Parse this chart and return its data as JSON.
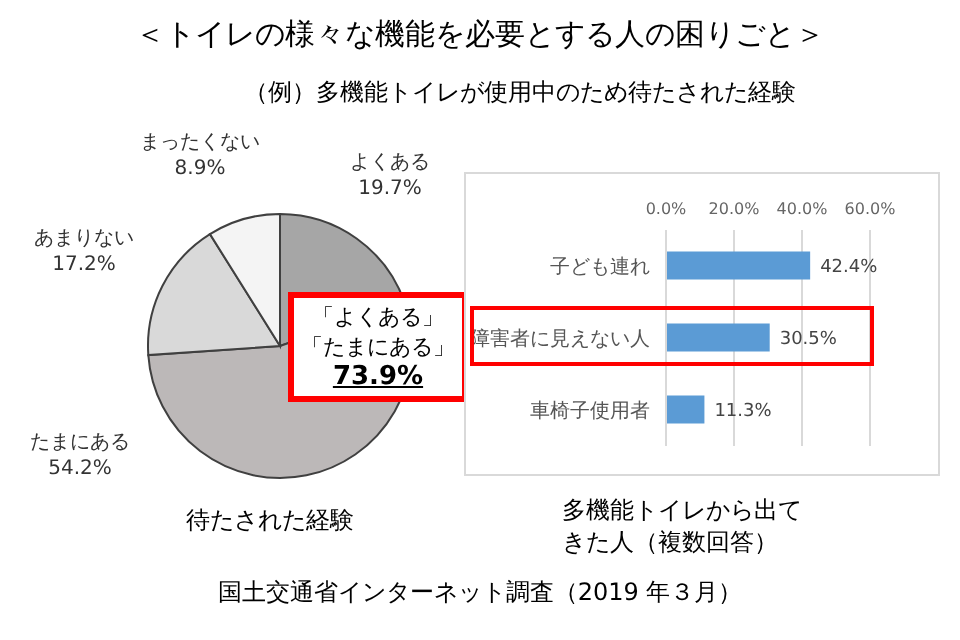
{
  "chart_data": [
    {
      "type": "pie",
      "title": "＜トイレの様々な機能を必要とする人の困りごと＞",
      "subtitle": "（例）多機能トイレが使用中のため待たされた経験",
      "xlabel": "待たされた経験",
      "categories": [
        "よくある",
        "たまにある",
        "あまりない",
        "まったくない"
      ],
      "values": [
        19.7,
        54.2,
        17.2,
        8.9
      ],
      "colors": [
        "#a6a6a6",
        "#bcb8b8",
        "#d9d9d9",
        "#f4f4f4"
      ],
      "value_labels": [
        "19.7%",
        "54.2%",
        "17.2%",
        "8.9%"
      ],
      "annotations": [
        "「よくある」",
        "「たまにある」",
        "73.9%",
        "国土交通省インターネット調査（2019 年３月）"
      ]
    },
    {
      "type": "bar",
      "orientation": "horizontal",
      "xlabel": "多機能トイレから出てきた人（複数回答）",
      "categories": [
        "子ども連れ",
        "障害者に見えない人",
        "車椅子使用者"
      ],
      "values": [
        42.4,
        30.5,
        11.3
      ],
      "color": "#5b9bd5",
      "value_labels": [
        "42.4%",
        "30.5%",
        "11.3%"
      ],
      "xlim": [
        0,
        60
      ],
      "xticks": [
        {
          "value": 0,
          "label": "0.0%"
        },
        {
          "value": 20,
          "label": "20.0%"
        },
        {
          "value": 40,
          "label": "40.0%"
        },
        {
          "value": 60,
          "label": "60.0%"
        }
      ],
      "grid": "x"
    }
  ]
}
